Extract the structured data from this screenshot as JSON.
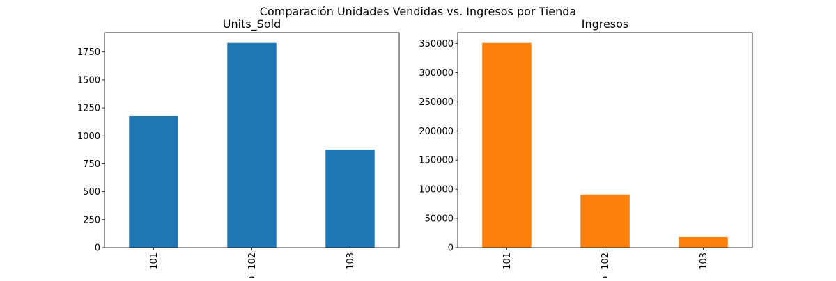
{
  "figure": {
    "suptitle": "Comparación Unidades Vendidas vs. Ingresos por Tienda",
    "xlabel_fragments": [
      "S",
      "S"
    ]
  },
  "chart_data": [
    {
      "type": "bar",
      "title": "Units_Sold",
      "xlabel": "",
      "ylabel": "",
      "categories": [
        "101",
        "102",
        "103"
      ],
      "values": [
        1176,
        1831,
        876
      ],
      "ylim": [
        0,
        1922.55
      ],
      "yticks": [
        0,
        250,
        500,
        750,
        1000,
        1250,
        1500,
        1750
      ],
      "ytick_labels": [
        "0",
        "250",
        "500",
        "750",
        "1000",
        "1250",
        "1500",
        "1750"
      ],
      "color": "#1f77b4",
      "grid": false,
      "legend": "none"
    },
    {
      "type": "bar",
      "title": "Ingresos",
      "xlabel": "",
      "ylabel": "",
      "categories": [
        "101",
        "102",
        "103"
      ],
      "values": [
        351000,
        91000,
        18000
      ],
      "ylim": [
        0,
        368550
      ],
      "yticks": [
        0,
        50000,
        100000,
        150000,
        200000,
        250000,
        300000,
        350000
      ],
      "ytick_labels": [
        "0",
        "50000",
        "100000",
        "150000",
        "200000",
        "250000",
        "300000",
        "350000"
      ],
      "color": "#ff7f0e",
      "grid": false,
      "legend": "none"
    }
  ]
}
